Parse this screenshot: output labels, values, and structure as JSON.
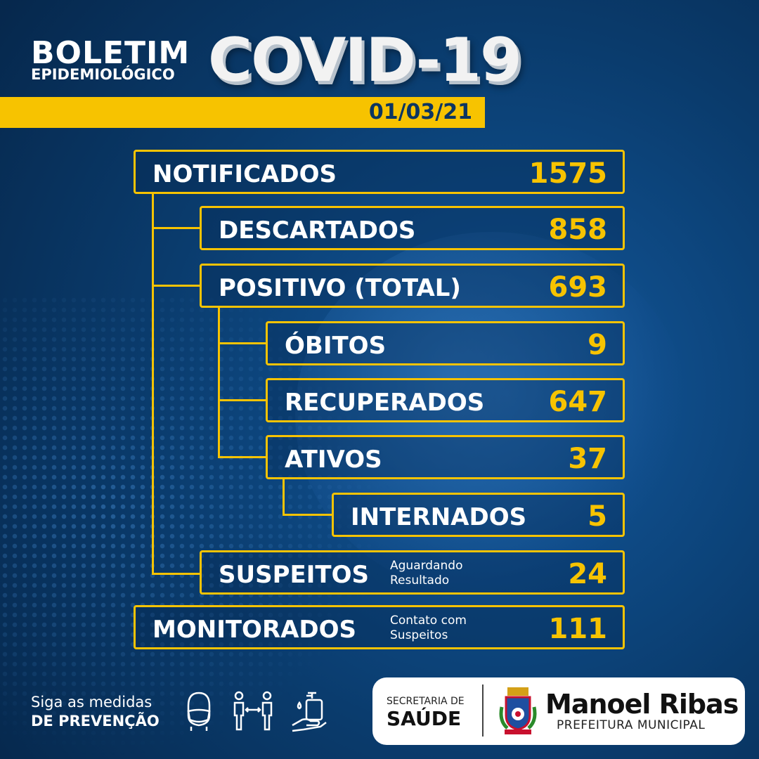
{
  "header": {
    "title_line1": "BOLETIM",
    "title_line2": "EPIDEMIOLÓGICO",
    "title_main": "COVID-19",
    "date": "01/03/21"
  },
  "stats": [
    {
      "label": "NOTIFICADOS",
      "value": "1575"
    },
    {
      "label": "DESCARTADOS",
      "value": "858"
    },
    {
      "label": "POSITIVO (TOTAL)",
      "value": "693"
    },
    {
      "label": "ÓBITOS",
      "value": "9"
    },
    {
      "label": "RECUPERADOS",
      "value": "647"
    },
    {
      "label": "ATIVOS",
      "value": "37"
    },
    {
      "label": "INTERNADOS",
      "value": "5"
    },
    {
      "label": "SUSPEITOS",
      "value": "24",
      "note_line1": "Aguardando",
      "note_line2": "Resultado"
    },
    {
      "label": "MONITORADOS",
      "value": "111",
      "note_line1": "Contato com",
      "note_line2": "Suspeitos"
    }
  ],
  "colors": {
    "accent": "#f7c300",
    "background": "#0a3b6c"
  },
  "footer": {
    "prevention_line1": "Siga as medidas",
    "prevention_line2": "DE PREVENÇÃO",
    "icons": [
      "face-mask-icon",
      "social-distance-icon",
      "hand-sanitizer-icon"
    ],
    "secretaria_line1": "SECRETARIA DE",
    "secretaria_line2": "SAÚDE",
    "city": "Manoel Ribas",
    "city_sub": "PREFEITURA MUNICIPAL"
  }
}
